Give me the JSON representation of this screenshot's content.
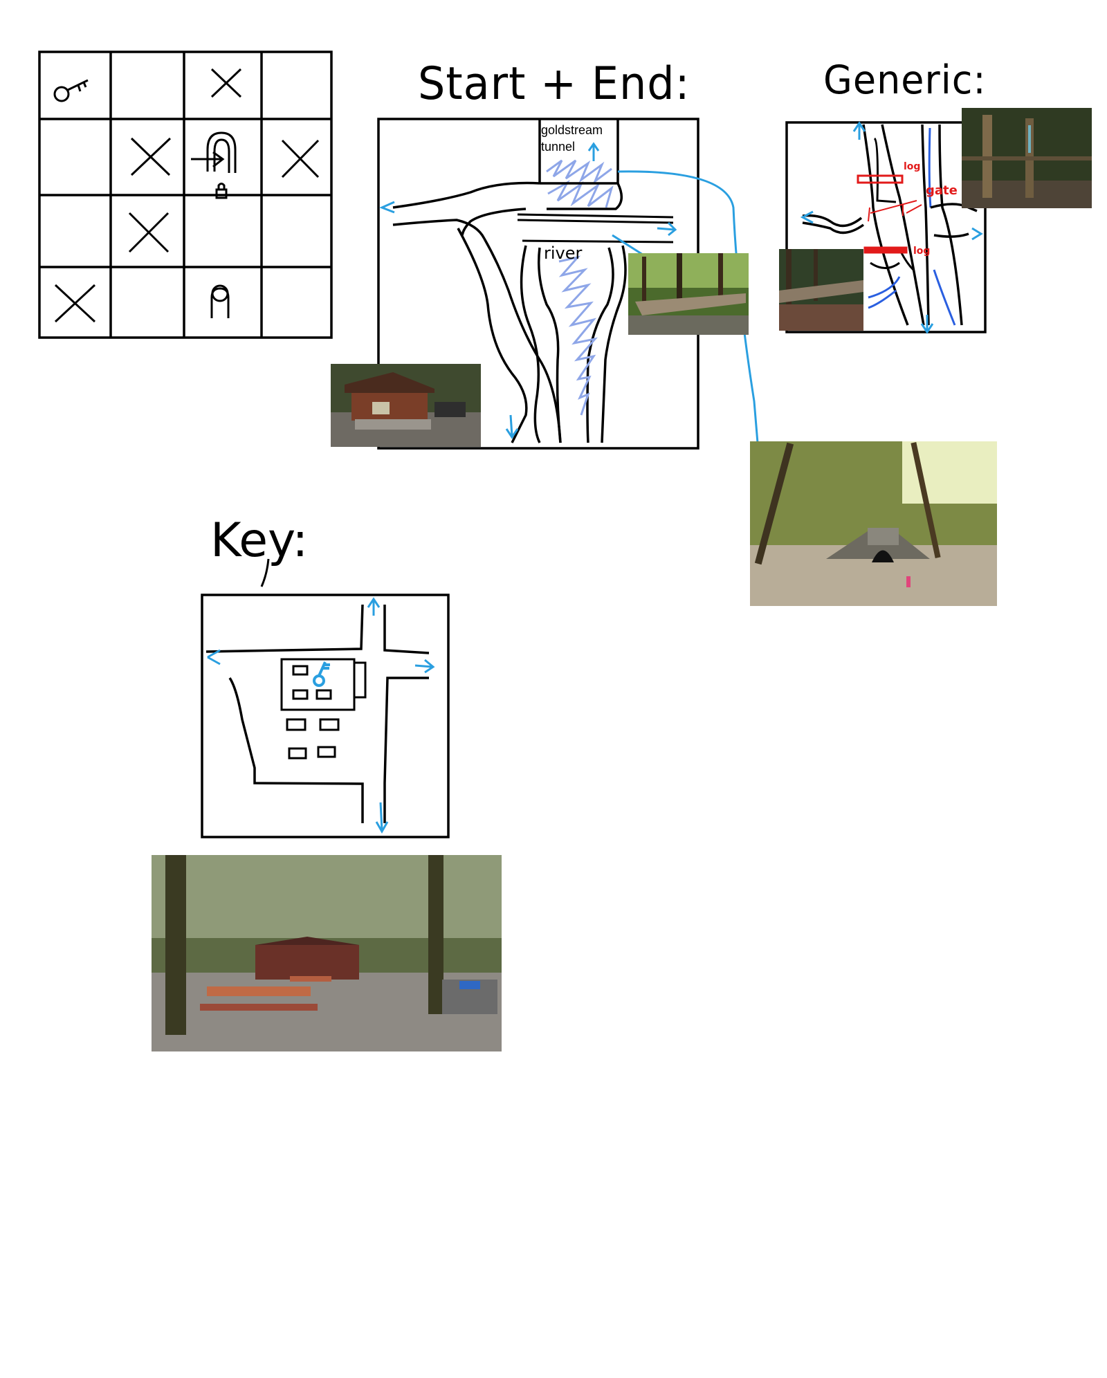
{
  "headings": {
    "start_end": "Start + End:",
    "generic": "Generic:",
    "key": "Key:"
  },
  "start_end_labels": {
    "tunnel": "goldstream tunnel",
    "river": "river"
  },
  "generic_labels": {
    "log_top": "log",
    "gate": "gate",
    "log_bottom": "log"
  },
  "grid": {
    "rows": 4,
    "cols": 4,
    "cells": [
      [
        "key-symbol",
        "",
        "x",
        ""
      ],
      [
        "",
        "x",
        "gated-arch",
        "x"
      ],
      [
        "",
        "x",
        "",
        ""
      ],
      [
        "x",
        "",
        "person",
        ""
      ]
    ]
  },
  "colors": {
    "arrow": "#2a9fe0",
    "river": "#8ea6e8",
    "gate": "#e21a1a",
    "line": "#000000"
  },
  "photos": [
    {
      "name": "ranger-booth-photo"
    },
    {
      "name": "footbridge-photo"
    },
    {
      "name": "tunnel-photo"
    },
    {
      "name": "gate-posts-photo"
    },
    {
      "name": "fallen-log-photo"
    },
    {
      "name": "picnic-area-photo"
    }
  ]
}
